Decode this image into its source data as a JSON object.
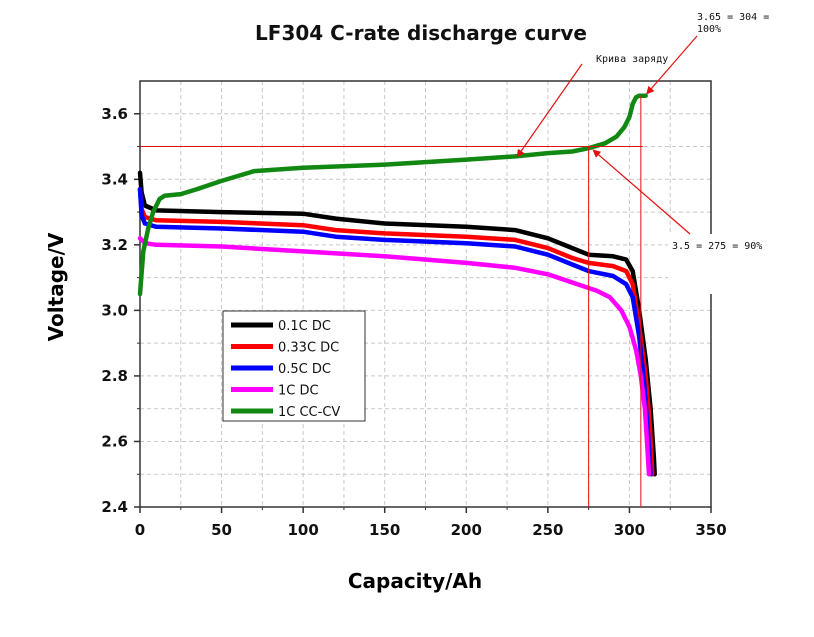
{
  "chart_data": {
    "type": "line",
    "title": "LF304 C-rate discharge curve",
    "xlabel": "Capacity/Ah",
    "ylabel": "Voltage/V",
    "xlim": [
      0,
      350
    ],
    "ylim": [
      2.4,
      3.7
    ],
    "x_ticks": [
      0,
      50,
      100,
      150,
      200,
      250,
      300,
      350
    ],
    "y_ticks": [
      2.4,
      2.6,
      2.8,
      3.0,
      3.2,
      3.4,
      3.6
    ],
    "x_tick_labels": [
      "0",
      "50",
      "100",
      "150",
      "200",
      "250",
      "300",
      "350"
    ],
    "y_tick_labels": [
      "2.4",
      "2.6",
      "2.8",
      "3.0",
      "3.2",
      "3.4",
      "3.6"
    ],
    "grid": true,
    "legend_position": "lower-left",
    "series": [
      {
        "name": "0.1C DC",
        "color": "#000000",
        "points": [
          [
            0,
            3.42
          ],
          [
            1,
            3.36
          ],
          [
            3,
            3.32
          ],
          [
            10,
            3.305
          ],
          [
            50,
            3.3
          ],
          [
            100,
            3.295
          ],
          [
            120,
            3.28
          ],
          [
            150,
            3.265
          ],
          [
            200,
            3.255
          ],
          [
            230,
            3.245
          ],
          [
            250,
            3.22
          ],
          [
            265,
            3.19
          ],
          [
            275,
            3.17
          ],
          [
            290,
            3.165
          ],
          [
            298,
            3.155
          ],
          [
            302,
            3.12
          ],
          [
            306,
            3.0
          ],
          [
            310,
            2.85
          ],
          [
            313,
            2.7
          ],
          [
            315,
            2.55
          ],
          [
            315.5,
            2.5
          ]
        ]
      },
      {
        "name": "0.33C DC",
        "color": "#ff0000",
        "points": [
          [
            0,
            3.37
          ],
          [
            1,
            3.31
          ],
          [
            3,
            3.285
          ],
          [
            10,
            3.275
          ],
          [
            50,
            3.27
          ],
          [
            100,
            3.26
          ],
          [
            120,
            3.245
          ],
          [
            150,
            3.235
          ],
          [
            200,
            3.225
          ],
          [
            230,
            3.215
          ],
          [
            250,
            3.19
          ],
          [
            265,
            3.16
          ],
          [
            275,
            3.145
          ],
          [
            290,
            3.135
          ],
          [
            298,
            3.12
          ],
          [
            302,
            3.08
          ],
          [
            306,
            2.95
          ],
          [
            310,
            2.8
          ],
          [
            312.5,
            2.65
          ],
          [
            314,
            2.5
          ]
        ]
      },
      {
        "name": "0.5C DC",
        "color": "#0000ff",
        "points": [
          [
            0,
            3.37
          ],
          [
            1,
            3.29
          ],
          [
            3,
            3.265
          ],
          [
            10,
            3.255
          ],
          [
            50,
            3.25
          ],
          [
            100,
            3.24
          ],
          [
            120,
            3.225
          ],
          [
            150,
            3.215
          ],
          [
            200,
            3.205
          ],
          [
            230,
            3.195
          ],
          [
            250,
            3.17
          ],
          [
            265,
            3.14
          ],
          [
            275,
            3.12
          ],
          [
            290,
            3.105
          ],
          [
            298,
            3.08
          ],
          [
            302,
            3.04
          ],
          [
            306,
            2.92
          ],
          [
            309,
            2.78
          ],
          [
            311.5,
            2.62
          ],
          [
            313,
            2.5
          ]
        ]
      },
      {
        "name": "1C DC",
        "color": "#ff00ff",
        "points": [
          [
            0,
            3.22
          ],
          [
            3,
            3.205
          ],
          [
            10,
            3.2
          ],
          [
            50,
            3.195
          ],
          [
            100,
            3.18
          ],
          [
            150,
            3.165
          ],
          [
            200,
            3.145
          ],
          [
            230,
            3.13
          ],
          [
            250,
            3.11
          ],
          [
            265,
            3.085
          ],
          [
            280,
            3.06
          ],
          [
            288,
            3.04
          ],
          [
            295,
            3.0
          ],
          [
            300,
            2.95
          ],
          [
            304,
            2.88
          ],
          [
            307,
            2.8
          ],
          [
            309.5,
            2.7
          ],
          [
            311,
            2.58
          ],
          [
            312,
            2.5
          ]
        ]
      },
      {
        "name": "1C CC-CV",
        "color": "#118811",
        "points": [
          [
            0,
            3.05
          ],
          [
            2,
            3.18
          ],
          [
            5,
            3.25
          ],
          [
            8,
            3.3
          ],
          [
            12,
            3.34
          ],
          [
            15,
            3.35
          ],
          [
            25,
            3.355
          ],
          [
            35,
            3.37
          ],
          [
            50,
            3.395
          ],
          [
            70,
            3.425
          ],
          [
            100,
            3.435
          ],
          [
            150,
            3.445
          ],
          [
            200,
            3.46
          ],
          [
            230,
            3.47
          ],
          [
            250,
            3.48
          ],
          [
            265,
            3.485
          ],
          [
            275,
            3.495
          ],
          [
            285,
            3.51
          ],
          [
            292,
            3.53
          ],
          [
            297,
            3.56
          ],
          [
            300,
            3.59
          ],
          [
            302,
            3.63
          ],
          [
            304,
            3.65
          ],
          [
            306,
            3.655
          ],
          [
            310,
            3.655
          ]
        ]
      }
    ],
    "reference_lines": {
      "horizontal_y": 3.5,
      "vertical_x": [
        275,
        307
      ]
    },
    "annotations": [
      {
        "text": "Крива заряду",
        "target": [
          230,
          3.475
        ]
      },
      {
        "text_lines": [
          "3.65 = 304 =",
          "100%"
        ],
        "target": [
          307,
          3.655
        ]
      },
      {
        "text": "3.5 = 275 = 90%",
        "target": [
          276,
          3.495
        ]
      }
    ]
  }
}
